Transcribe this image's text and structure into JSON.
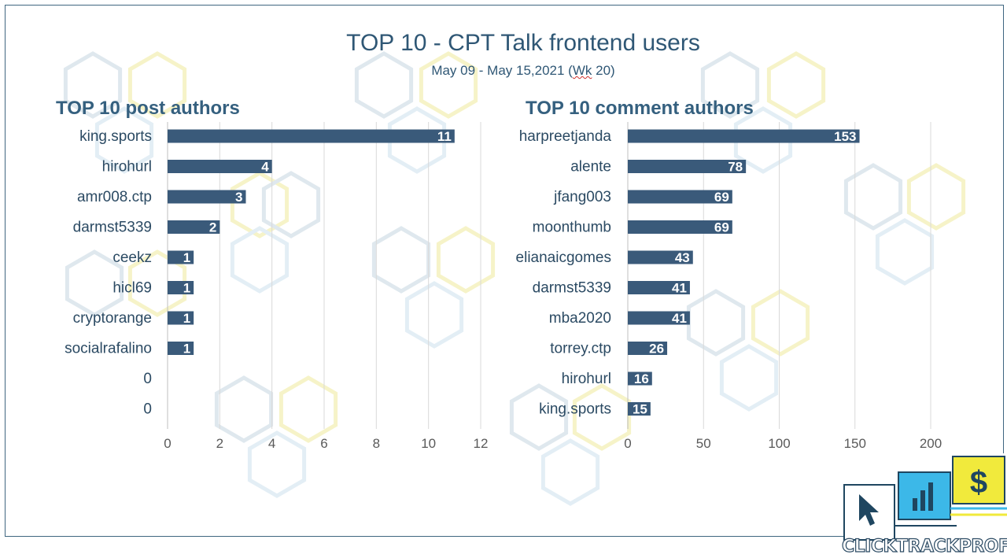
{
  "title": "TOP 10 - CPT Talk frontend users",
  "subtitle_prefix": "May 09 - May 15,2021 (",
  "subtitle_wk": "Wk",
  "subtitle_suffix": " 20)",
  "brand_text": "CLICKTRACKPROFIT",
  "colors": {
    "bar": "#3a5a7a",
    "gridline": "#d9d9d9",
    "title": "#2f5775",
    "label": "#2b4a63",
    "logo_blue": "#3cb8e8",
    "logo_yellow": "#f1ea3c",
    "logo_dark": "#1f4660"
  },
  "chart_data": [
    {
      "type": "bar",
      "orientation": "horizontal",
      "title": "TOP 10 post authors",
      "categories": [
        "king.sports",
        "hirohurl",
        "amr008.ctp",
        "darmst5339",
        "ceekz",
        "hicl69",
        "cryptorange",
        "socialrafalino",
        "0",
        "0"
      ],
      "values": [
        11,
        4,
        3,
        2,
        1,
        1,
        1,
        1,
        null,
        null
      ],
      "xlim": [
        0,
        12
      ],
      "xticks": [
        0,
        2,
        4,
        6,
        8,
        10,
        12
      ],
      "data_labels": true,
      "grid": true
    },
    {
      "type": "bar",
      "orientation": "horizontal",
      "title": "TOP 10 comment authors",
      "categories": [
        "harpreetjanda",
        "alente",
        "jfang003",
        "moonthumb",
        "elianaicgomes",
        "darmst5339",
        "mba2020",
        "torrey.ctp",
        "hirohurl",
        "king.sports"
      ],
      "values": [
        153,
        78,
        69,
        69,
        43,
        41,
        41,
        26,
        16,
        15
      ],
      "xlim": [
        0,
        200
      ],
      "xticks": [
        0,
        50,
        100,
        150,
        200
      ],
      "data_labels": true,
      "grid": true
    }
  ]
}
